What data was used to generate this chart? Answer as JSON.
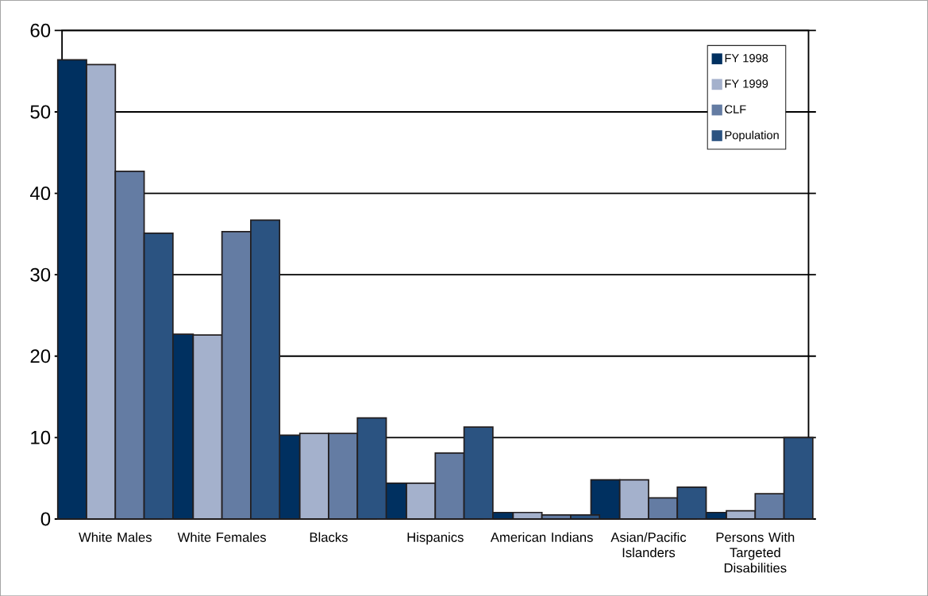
{
  "chart_data": {
    "type": "bar",
    "categories": [
      "White Males",
      "White Females",
      "Blacks",
      "Hispanics",
      "American Indians",
      "Asian/Pacific Islanders",
      "Persons With Targeted Disabilities"
    ],
    "series": [
      {
        "name": "FY 1998",
        "color": "#003060",
        "values": [
          56.4,
          22.7,
          10.3,
          4.4,
          0.8,
          4.8,
          0.8
        ]
      },
      {
        "name": "FY 1999",
        "color": "#a4b1cc",
        "values": [
          55.8,
          22.6,
          10.5,
          4.4,
          0.8,
          4.8,
          1.0
        ]
      },
      {
        "name": "CLF",
        "color": "#647ca3",
        "values": [
          42.7,
          35.3,
          10.5,
          8.1,
          0.5,
          2.6,
          3.1
        ]
      },
      {
        "name": "Population",
        "color": "#2b5381",
        "values": [
          35.1,
          36.7,
          12.4,
          11.3,
          0.5,
          3.9,
          10.0
        ]
      }
    ],
    "ylim": [
      0,
      60
    ],
    "yticks": [
      0,
      10,
      20,
      30,
      40,
      50,
      60
    ],
    "grid": "y",
    "legend": "top right"
  }
}
